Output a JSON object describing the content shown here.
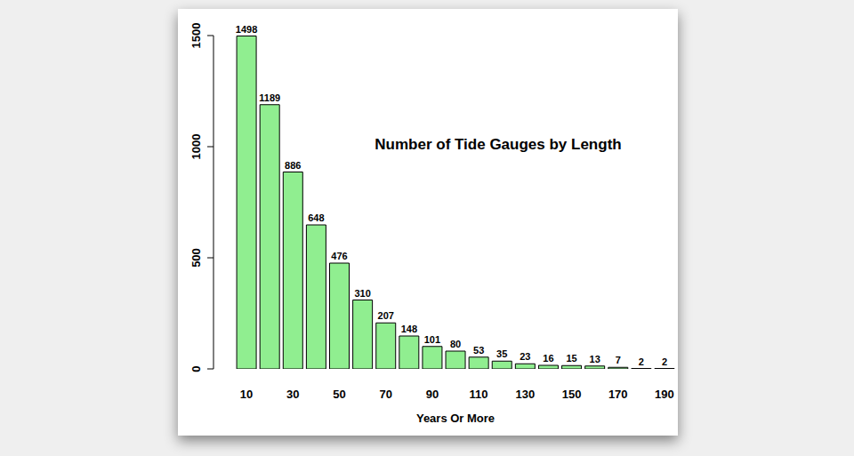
{
  "chart_data": {
    "type": "bar",
    "title": "Number of Tide Gauges by Length",
    "x_label": "Years Or More",
    "categories": [
      "10",
      null,
      "30",
      null,
      "50",
      null,
      "70",
      null,
      "90",
      null,
      "110",
      null,
      "130",
      null,
      "150",
      null,
      "170",
      null,
      "190"
    ],
    "values": [
      1498,
      1189,
      886,
      648,
      476,
      310,
      207,
      148,
      101,
      80,
      53,
      35,
      23,
      16,
      15,
      13,
      7,
      2,
      2
    ],
    "color": "#90ee90",
    "ylim": [
      0,
      1500
    ],
    "yticks": [
      0,
      500,
      1000,
      1500
    ],
    "grid": false,
    "data_labels": true
  }
}
